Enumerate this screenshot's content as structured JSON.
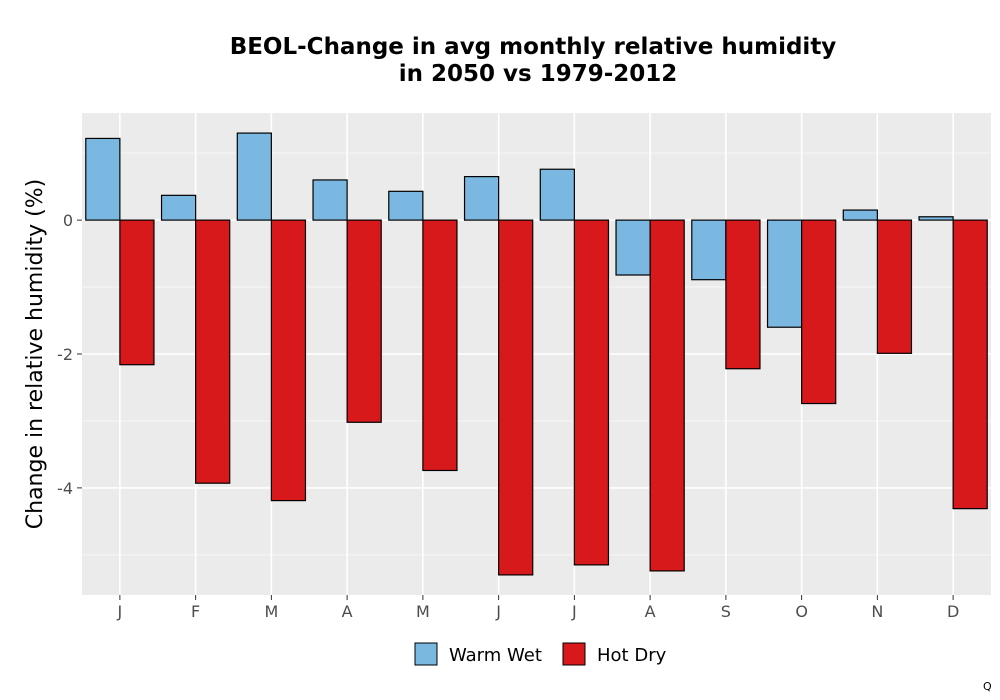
{
  "chart_data": {
    "type": "bar",
    "title_lines": [
      "BEOL-Change in avg monthly relative humidity",
      "in 2050 vs 1979-2012"
    ],
    "xlabel": "",
    "ylabel": "Change in relative humidity (%)",
    "categories": [
      "J",
      "F",
      "M",
      "A",
      "M",
      "J",
      "J",
      "A",
      "S",
      "O",
      "N",
      "D"
    ],
    "series": [
      {
        "name": "Warm Wet",
        "color": "#7ab8e2",
        "values": [
          1.22,
          0.37,
          1.3,
          0.6,
          0.43,
          0.65,
          0.76,
          -0.82,
          -0.89,
          -1.6,
          0.15,
          0.05
        ]
      },
      {
        "name": "Hot Dry",
        "color": "#d7191c",
        "values": [
          -2.16,
          -3.93,
          -4.19,
          -3.02,
          -3.74,
          -5.3,
          -5.15,
          -5.24,
          -2.22,
          -2.74,
          -1.99,
          -4.31
        ]
      }
    ],
    "ylim": [
      -5.6,
      1.6
    ],
    "yticks": [
      0,
      -2,
      -4
    ],
    "ytick_labels": [
      "0",
      "-2",
      "-4"
    ],
    "grid": true,
    "legend_position": "bottom"
  },
  "corner_mark": "Q"
}
